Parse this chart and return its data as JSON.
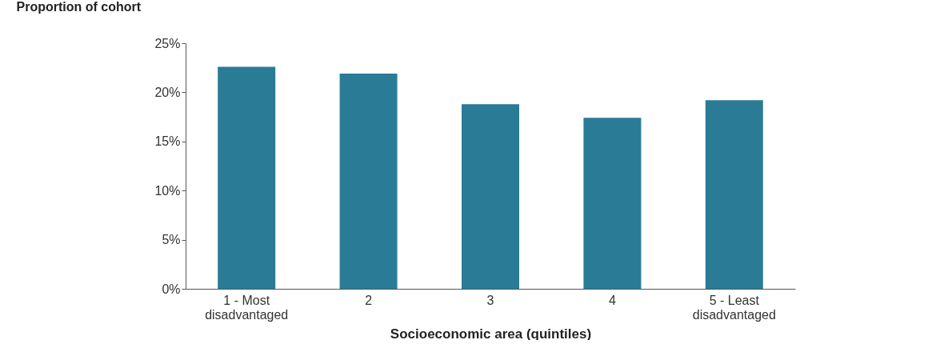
{
  "chart_data": {
    "type": "bar",
    "xlabel": "Socioeconomic  area (quintiles)",
    "ylabel": "Proportion of cohort",
    "categories": [
      "1 - Most disadvantaged",
      "2",
      "3",
      "4",
      "5 - Least disadvantaged"
    ],
    "values": [
      22.6,
      21.9,
      18.8,
      17.4,
      19.2
    ],
    "color": "#2a7b96",
    "ylim": [
      0,
      25
    ],
    "yticks": [
      {
        "value": 0,
        "label": "0%"
      },
      {
        "value": 5,
        "label": "5%"
      },
      {
        "value": 10,
        "label": "10%"
      },
      {
        "value": 15,
        "label": "15%"
      },
      {
        "value": 20,
        "label": "20%"
      },
      {
        "value": 25,
        "label": "25%"
      }
    ],
    "grid": false
  }
}
